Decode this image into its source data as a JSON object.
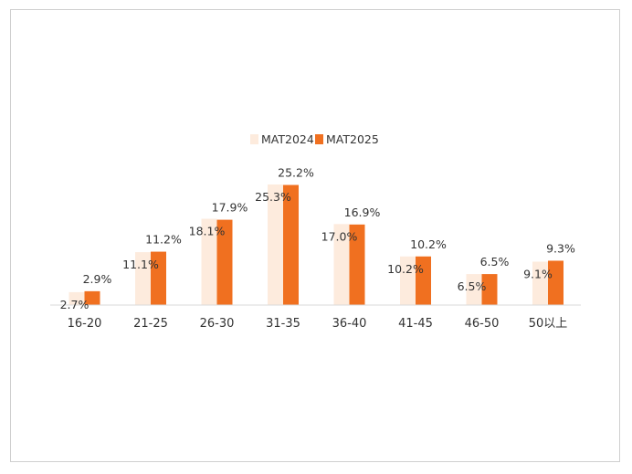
{
  "chart_data": {
    "type": "bar",
    "categories": [
      "16-20",
      "21-25",
      "26-30",
      "31-35",
      "36-40",
      "41-45",
      "46-50",
      "50以上"
    ],
    "series": [
      {
        "name": "MAT2024",
        "color": "#fdebdd",
        "values": [
          2.7,
          11.1,
          18.1,
          25.3,
          17.0,
          10.2,
          6.5,
          9.1
        ],
        "labels": [
          "2.7%",
          "11.1%",
          "18.1%",
          "25.3%",
          "17.0%",
          "10.2%",
          "6.5%",
          "9.1%"
        ]
      },
      {
        "name": "MAT2025",
        "color": "#f07020",
        "values": [
          2.9,
          11.2,
          17.9,
          25.2,
          16.9,
          10.2,
          6.5,
          9.3
        ],
        "labels": [
          "2.9%",
          "11.2%",
          "17.9%",
          "25.2%",
          "16.9%",
          "10.2%",
          "6.5%",
          "9.3%"
        ]
      }
    ],
    "ylim": [
      0,
      25.3
    ],
    "legend_position": "top-center",
    "grid": false
  }
}
